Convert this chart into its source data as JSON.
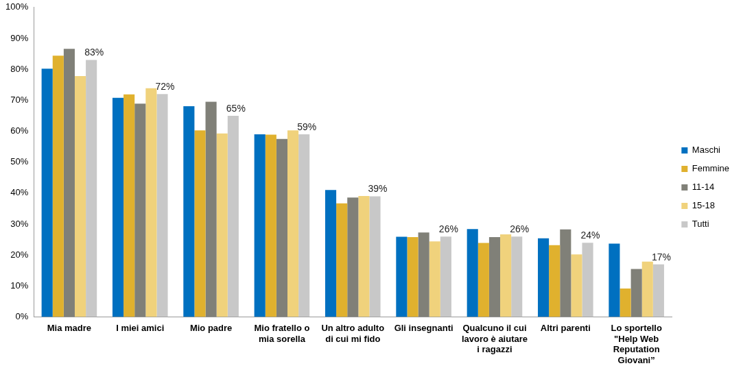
{
  "chart_data": {
    "type": "bar",
    "categories": [
      "Mia madre",
      "I miei amici",
      "Mio padre",
      "Mio fratello o mia sorella",
      "Un altro adulto di cui mi fido",
      "Gli insegnanti",
      "Qualcuno il cui lavoro è aiutare i ragazzi",
      "Altri parenti",
      "Lo sportello \"Help Web Reputation Giovani”"
    ],
    "series": [
      {
        "name": "Maschi",
        "color": "#0070c0",
        "values": [
          80.2,
          70.8,
          68.1,
          59.0,
          41.0,
          25.9,
          28.4,
          25.4,
          23.7
        ]
      },
      {
        "name": "Femmine",
        "color": "#e0b12e",
        "values": [
          84.4,
          71.9,
          60.3,
          58.9,
          36.7,
          25.8,
          23.9,
          23.2,
          9.2
        ]
      },
      {
        "name": "11-14",
        "color": "#808078",
        "values": [
          86.6,
          68.9,
          69.5,
          57.5,
          38.6,
          27.3,
          25.8,
          28.3,
          15.5
        ]
      },
      {
        "name": "15-18",
        "color": "#f0d27c",
        "values": [
          77.8,
          73.9,
          59.3,
          60.3,
          39.1,
          24.4,
          26.7,
          20.2,
          17.9
        ]
      },
      {
        "name": "Tutti",
        "color": "#c8c8c8",
        "values": [
          83,
          72,
          65,
          59,
          39,
          26,
          26,
          24,
          17
        ],
        "value_labels": [
          "83%",
          "72%",
          "65%",
          "59%",
          "39%",
          "26%",
          "26%",
          "24%",
          "17%"
        ]
      }
    ],
    "ylim": [
      0,
      100
    ],
    "yticks": [
      {
        "value": 0,
        "label": "0%"
      },
      {
        "value": 10,
        "label": "10%"
      },
      {
        "value": 20,
        "label": "20%"
      },
      {
        "value": 30,
        "label": "30%"
      },
      {
        "value": 40,
        "label": "40%"
      },
      {
        "value": 50,
        "label": "50%"
      },
      {
        "value": 60,
        "label": "60%"
      },
      {
        "value": 70,
        "label": "70%"
      },
      {
        "value": 80,
        "label": "80%"
      },
      {
        "value": 90,
        "label": "90%"
      },
      {
        "value": 100,
        "label": "100%"
      }
    ],
    "grid": false,
    "legend": "right"
  }
}
